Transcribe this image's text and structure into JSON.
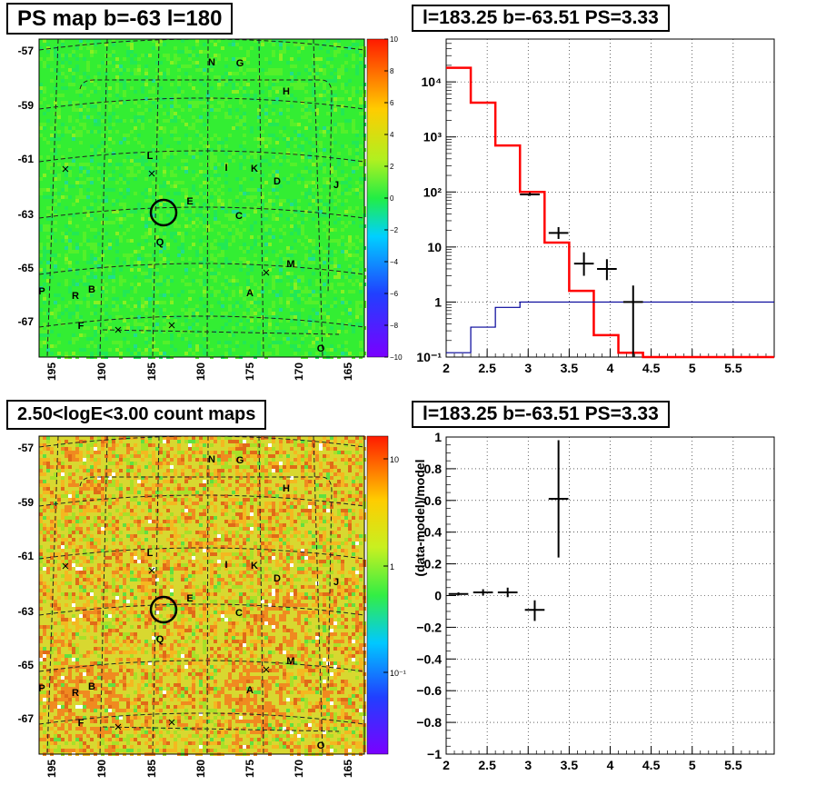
{
  "panels": {
    "ps_map": {
      "title": "PS map b=-63 l=180"
    },
    "spectrum": {
      "title": "l=183.25 b=-63.51 PS=3.33"
    },
    "count_map": {
      "title": "2.50<logE<3.00 count maps"
    },
    "residual": {
      "title": "l=183.25 b=-63.51 PS=3.33"
    }
  },
  "maps": {
    "y_ticks": [
      "-57",
      "-59",
      "-61",
      "-63",
      "-65",
      "-67"
    ],
    "x_ticks": [
      "195",
      "190",
      "185",
      "180",
      "175",
      "170",
      "165"
    ],
    "sources": [
      {
        "label": "N"
      },
      {
        "label": "G"
      },
      {
        "label": "H"
      },
      {
        "label": "L"
      },
      {
        "label": "I"
      },
      {
        "label": "K"
      },
      {
        "label": "D"
      },
      {
        "label": "J"
      },
      {
        "label": "E"
      },
      {
        "label": "C"
      },
      {
        "label": "Q"
      },
      {
        "label": "M"
      },
      {
        "label": "P"
      },
      {
        "label": "R"
      },
      {
        "label": "B"
      },
      {
        "label": "A"
      },
      {
        "label": "F"
      },
      {
        "label": "O"
      }
    ],
    "ps_colorbar": [
      "10",
      "8",
      "6",
      "4",
      "2",
      "0",
      "−2",
      "−4",
      "−6",
      "−8",
      "−10"
    ],
    "count_colorbar": [
      "10",
      "1",
      "10⁻¹"
    ],
    "colors": {
      "ps_base": "#33ee33",
      "count_base": "#d8d830",
      "circle": "#000000"
    }
  },
  "chart_data": [
    {
      "type": "line",
      "title": "l=183.25 b=-63.51 PS=3.33",
      "x_scale": "linear",
      "y_scale": "log",
      "xlim": [
        2,
        6
      ],
      "ylim": [
        0.1,
        60000
      ],
      "x_ticks": [
        "2",
        "2.5",
        "3",
        "3.5",
        "4",
        "4.5",
        "5",
        "5.5"
      ],
      "y_ticks": [
        "10⁻¹",
        "1",
        "10",
        "10²",
        "10³",
        "10⁴"
      ],
      "grid": true,
      "series": [
        {
          "color": "#ff0000",
          "style": "step",
          "edges": [
            2.0,
            2.3,
            2.6,
            2.9,
            3.2,
            3.5,
            3.8,
            4.1,
            4.4,
            6.0
          ],
          "values": [
            18000,
            4200,
            700,
            100,
            12,
            1.6,
            0.25,
            0.12,
            0.1
          ]
        },
        {
          "color": "#000099",
          "style": "step",
          "edges": [
            2.0,
            2.3,
            2.6,
            2.9,
            3.2,
            6.0
          ],
          "values": [
            0.12,
            0.35,
            0.8,
            1.0,
            1.0
          ]
        },
        {
          "color": "#000000",
          "style": "errorbar",
          "x": [
            3.02,
            3.37,
            3.68,
            3.96,
            4.28
          ],
          "xerr": [
            0.12,
            0.12,
            0.12,
            0.12,
            0.12
          ],
          "y": [
            90,
            18,
            5,
            4,
            1
          ],
          "ylo": [
            85,
            14,
            3,
            2.5,
            0.1
          ],
          "yhi": [
            98,
            23,
            8,
            6,
            2
          ]
        }
      ]
    },
    {
      "type": "scatter",
      "title": "l=183.25 b=-63.51 PS=3.33",
      "ylabel": "(data-model)/model",
      "xlim": [
        2,
        6
      ],
      "ylim": [
        -1,
        1
      ],
      "x_ticks": [
        "2",
        "2.5",
        "3",
        "3.5",
        "4",
        "4.5",
        "5",
        "5.5"
      ],
      "y_ticks": [
        "−1",
        "−0.8",
        "−0.6",
        "−0.4",
        "−0.2",
        "0",
        "0.2",
        "0.4",
        "0.6",
        "0.8",
        "1"
      ],
      "grid": true,
      "series": [
        {
          "color": "#000000",
          "style": "errorbar",
          "x": [
            2.15,
            2.45,
            2.75,
            3.08,
            3.37
          ],
          "xerr": [
            0.12,
            0.12,
            0.12,
            0.12,
            0.12
          ],
          "y": [
            0.01,
            0.02,
            0.02,
            -0.09,
            0.61
          ],
          "ylo": [
            0.0,
            0.0,
            -0.01,
            -0.16,
            0.24
          ],
          "yhi": [
            0.02,
            0.04,
            0.05,
            -0.03,
            0.98
          ]
        }
      ]
    }
  ]
}
